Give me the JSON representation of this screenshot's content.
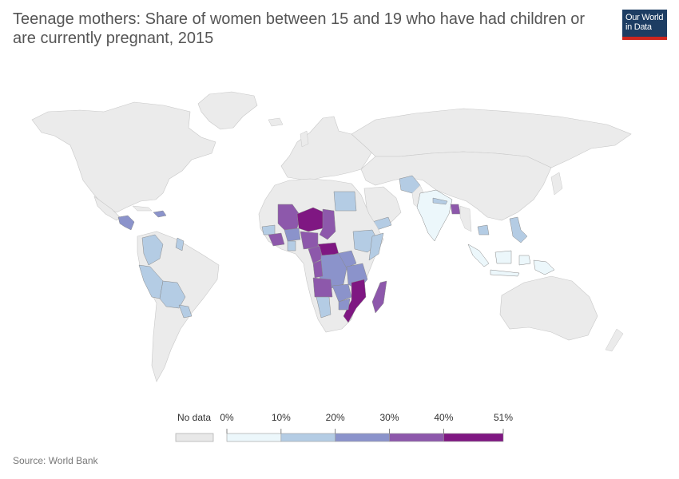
{
  "title": "Teenage mothers: Share of women between 15 and 19 who have had children or are currently pregnant, 2015",
  "logo": {
    "line1": "Our World",
    "line2": "in Data",
    "bg_color": "#1d3d63",
    "accent_color": "#ce261e"
  },
  "source": "Source: World Bank",
  "legend": {
    "no_data_label": "No data",
    "tick_labels": [
      "0%",
      "10%",
      "20%",
      "30%",
      "40%",
      "51%"
    ],
    "no_data_color": "#e8e8e8",
    "bins": [
      {
        "from": 0,
        "to": 10,
        "color": "#ecf7fb"
      },
      {
        "from": 10,
        "to": 20,
        "color": "#b4cce4"
      },
      {
        "from": 20,
        "to": 30,
        "color": "#8b93cb"
      },
      {
        "from": 30,
        "to": 40,
        "color": "#8d58ab"
      },
      {
        "from": 40,
        "to": 51,
        "color": "#7f1782"
      }
    ]
  },
  "land_color": "#ebebeb",
  "border_color": "#c8c8c8"
}
